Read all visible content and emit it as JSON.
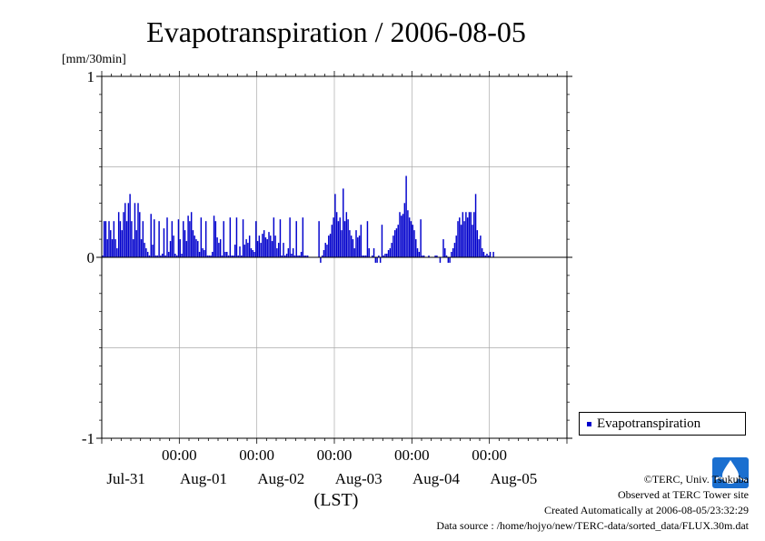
{
  "chart_data": {
    "type": "bar",
    "title": "Evapotranspiration / 2006-08-05",
    "ylabel": "[mm/30min]",
    "xlabel": "(LST)",
    "ylim": [
      -1,
      1
    ],
    "yticks": [
      "1",
      "0",
      "-1"
    ],
    "grid": true,
    "legend_position": "right",
    "x_range_hours": [
      0,
      144
    ],
    "midnight_labels": [
      "00:00",
      "00:00",
      "00:00",
      "00:00",
      "00:00"
    ],
    "date_labels": [
      "Jul-31",
      "Aug-01",
      "Aug-02",
      "Aug-03",
      "Aug-04",
      "Aug-05"
    ],
    "series": [
      {
        "name": "Evapotranspiration",
        "color": "#0000cc",
        "interval_minutes": 30,
        "values": [
          0.01,
          0.2,
          0.2,
          0.1,
          0.2,
          0.15,
          0.1,
          0.2,
          0.1,
          0.05,
          0.25,
          0.2,
          0.15,
          0.25,
          0.3,
          0.2,
          0.3,
          0.35,
          0.2,
          0.1,
          0.3,
          0.15,
          0.3,
          0.25,
          0.1,
          0.2,
          0.08,
          0.05,
          0.03,
          0.01,
          0.24,
          0.07,
          0.21,
          0.01,
          0.01,
          0.2,
          0.01,
          0.02,
          0.16,
          0.01,
          0.22,
          0.03,
          0.09,
          0.2,
          0.12,
          0.02,
          0.01,
          0.21,
          0.1,
          0.02,
          0.2,
          0.15,
          0.09,
          0.23,
          0.2,
          0.25,
          0.15,
          0.12,
          0.1,
          0.09,
          0.03,
          0.22,
          0.05,
          0.04,
          0.2,
          0.01,
          0.01,
          0.01,
          0.03,
          0.23,
          0.2,
          0.11,
          0.08,
          0.1,
          0.01,
          0.2,
          0.03,
          0.03,
          0.01,
          0.22,
          0.01,
          0.01,
          0.07,
          0.22,
          0.01,
          0.06,
          0.01,
          0.21,
          0.07,
          0.1,
          0.08,
          0.12,
          0.05,
          0.04,
          0.03,
          0.2,
          0.09,
          0.12,
          0.08,
          0.13,
          0.15,
          0.11,
          0.1,
          0.14,
          0.12,
          0.09,
          0.22,
          0.12,
          0.05,
          0.08,
          0.21,
          0.01,
          0.08,
          0.01,
          0.02,
          0.05,
          0.22,
          0.02,
          0.05,
          0.01,
          0.2,
          0.01,
          0.01,
          0.03,
          0.22,
          0.01,
          0.01,
          0.01,
          0,
          0,
          0,
          0,
          0,
          0,
          0.2,
          -0.03,
          0.01,
          0.04,
          0.08,
          0.07,
          0.12,
          0.13,
          0.18,
          0.22,
          0.35,
          0.25,
          0.2,
          0.22,
          0.15,
          0.38,
          0.2,
          0.25,
          0.21,
          0.15,
          0.12,
          0.1,
          0.05,
          0.15,
          0.11,
          0.12,
          0.18,
          0.01,
          0.01,
          0.01,
          0.2,
          0.05,
          0,
          0.01,
          0.05,
          -0.03,
          -0.03,
          0.01,
          -0.03,
          0.18,
          0.01,
          0.02,
          0.02,
          0.04,
          0.05,
          0.08,
          0.12,
          0.15,
          0.16,
          0.18,
          0.25,
          0.23,
          0.24,
          0.3,
          0.45,
          0.26,
          0.22,
          0.2,
          0.18,
          0.15,
          0.1,
          0.05,
          0.03,
          0.21,
          0.01,
          0.01,
          0,
          0,
          0.01,
          0,
          0,
          0,
          0.01,
          0.01,
          0,
          -0.03,
          0,
          0.1,
          0.05,
          0.01,
          -0.03,
          -0.03,
          0.03,
          0.05,
          0.08,
          0.12,
          0.2,
          0.22,
          0.18,
          0.25,
          0.2,
          0.25,
          0.22,
          0.25,
          0.25,
          0.18,
          0.25,
          0.35,
          0.15,
          0.1,
          0.12,
          0.05,
          0.03,
          0.01,
          0.02,
          0.01,
          0.03,
          0,
          0.03,
          0,
          0,
          0,
          0,
          0,
          0,
          0,
          0,
          0,
          0,
          0,
          0,
          0
        ]
      }
    ]
  },
  "credits": {
    "copyright": "©TERC, Univ. Tsukuba",
    "observed": "Observed at TERC Tower site",
    "created": "Created Automatically at 2006-08-05/23:32:29",
    "source": "Data source : /home/hojyo/new/TERC-data/sorted_data/FLUX.30m.dat",
    "logo_text": "TERC"
  }
}
